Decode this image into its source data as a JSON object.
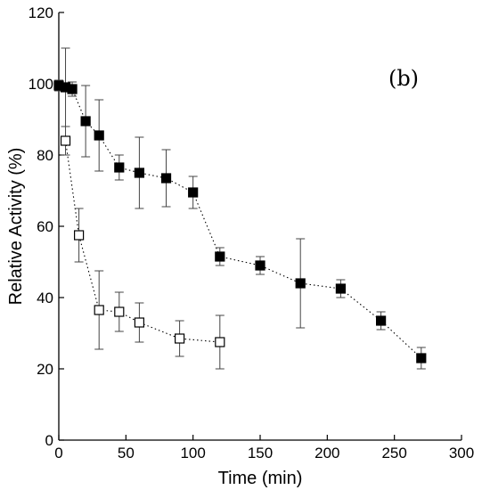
{
  "chart_data": {
    "type": "scatter",
    "title": "",
    "panel_label": "(b)",
    "xlabel": "Time (min)",
    "ylabel": "Relative Activity (%)",
    "xlim": [
      0,
      300
    ],
    "ylim": [
      0,
      120
    ],
    "xticks": [
      "0",
      "50",
      "100",
      "150",
      "200",
      "250",
      "300"
    ],
    "yticks": [
      "0",
      "20",
      "40",
      "60",
      "80",
      "100",
      "120"
    ],
    "grid": false,
    "legend": "none",
    "series": [
      {
        "marker": "filled-square",
        "color": "#000000",
        "line": "dotted",
        "x": [
          0,
          5,
          10,
          20,
          30,
          45,
          60,
          80,
          100,
          120,
          150,
          180,
          210,
          240,
          270
        ],
        "y": [
          99.5,
          99,
          98.5,
          89.5,
          85.5,
          76.5,
          75,
          73.5,
          69.5,
          51.5,
          49,
          44,
          42.5,
          33.5,
          23
        ],
        "err": [
          1.5,
          11,
          2,
          10,
          10,
          3.5,
          10,
          8,
          4.5,
          2.5,
          2.5,
          12.5,
          2.5,
          2.5,
          3
        ]
      },
      {
        "marker": "open-square",
        "color": "#000000",
        "line": "dotted",
        "x": [
          5,
          15,
          30,
          45,
          60,
          90,
          120
        ],
        "y": [
          84,
          57.5,
          36.5,
          36,
          33,
          28.5,
          27.5
        ],
        "err": [
          4,
          7.5,
          11,
          5.5,
          5.5,
          5,
          7.5
        ]
      }
    ]
  }
}
